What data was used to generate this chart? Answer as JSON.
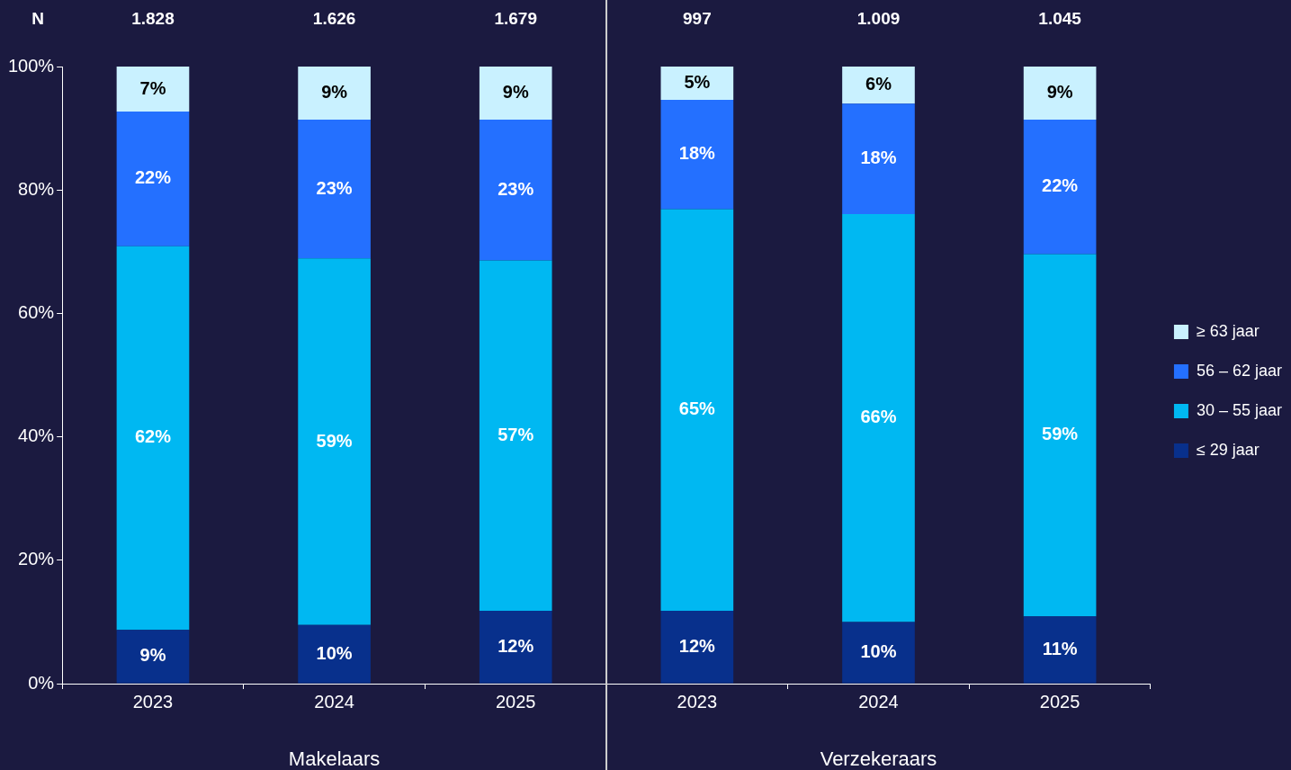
{
  "chart_data": {
    "type": "bar",
    "stacked": true,
    "categories": [
      "2023",
      "2024",
      "2025",
      "2023",
      "2024",
      "2025"
    ],
    "series": [
      {
        "name": "≤ 29 jaar",
        "color": "#08308c",
        "values": [
          8.7,
          9.5,
          11.8,
          11.8,
          10.0,
          10.9
        ],
        "value_labels": [
          "9%",
          "10%",
          "12%",
          "12%",
          "10%",
          "11%"
        ]
      },
      {
        "name": "30 – 55 jaar",
        "color": "#00b8f2",
        "values": [
          62.2,
          59.4,
          56.8,
          65.1,
          66.1,
          58.7
        ],
        "value_labels": [
          "62%",
          "59%",
          "57%",
          "65%",
          "66%",
          "59%"
        ]
      },
      {
        "name": "56 – 62 jaar",
        "color": "#2470ff",
        "values": [
          21.8,
          22.5,
          22.8,
          17.7,
          17.9,
          21.8
        ],
        "value_labels": [
          "22%",
          "23%",
          "23%",
          "18%",
          "18%",
          "22%"
        ]
      },
      {
        "name": "≥ 63 jaar",
        "color": "#c9f1ff",
        "values": [
          7.3,
          8.6,
          8.6,
          5.4,
          6.0,
          8.6
        ],
        "value_labels": [
          "7%",
          "9%",
          "9%",
          "5%",
          "6%",
          "9%"
        ]
      }
    ],
    "ylim": [
      0,
      100
    ],
    "yticks": [
      {
        "value": 0,
        "label": "0%"
      },
      {
        "value": 20,
        "label": "20%"
      },
      {
        "value": 40,
        "label": "40%"
      },
      {
        "value": 60,
        "label": "60%"
      },
      {
        "value": 80,
        "label": "80%"
      },
      {
        "value": 100,
        "label": "100%"
      }
    ],
    "annotations": [
      "N",
      "1.828",
      "1.626",
      "1.679",
      "997",
      "1.009",
      "1.045",
      "Makelaars",
      "Verzekeraars"
    ],
    "grid": false,
    "legend": "right"
  }
}
